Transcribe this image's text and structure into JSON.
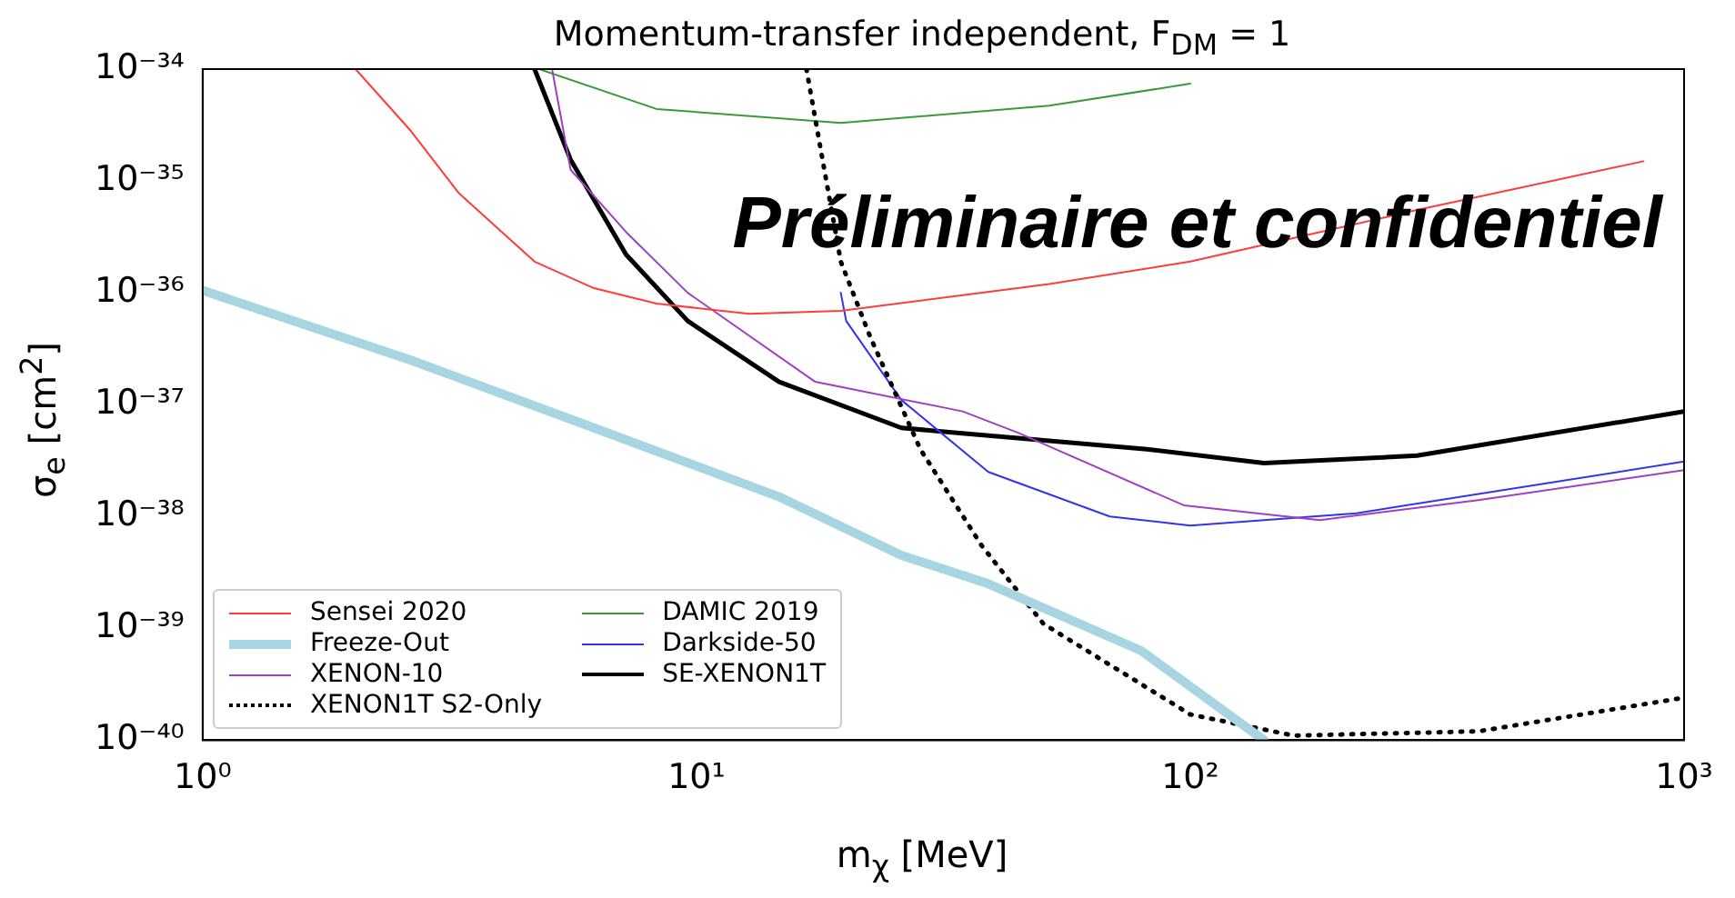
{
  "chart_data": {
    "type": "line",
    "title": "Momentum-transfer independent, F$_{DM}$ = 1",
    "xlabel": "m$_{χ}$ [MeV]",
    "ylabel": "σ$_{e}$ [cm$^{2}$]",
    "log": "xy",
    "marker": "none",
    "legend": "bottom left",
    "xlim": [
      1,
      1000
    ],
    "xticks": [
      {
        "value": 1,
        "label": "10⁰"
      },
      {
        "value": 10,
        "label": "10¹"
      },
      {
        "value": 100,
        "label": "10²"
      },
      {
        "value": 1000,
        "label": "10³"
      }
    ],
    "ylim": [
      1e-40,
      1e-34
    ],
    "yticks": [
      {
        "value": 1e-40,
        "label": "10⁻⁴⁰"
      },
      {
        "value": 1e-39,
        "label": "10⁻³⁹"
      },
      {
        "value": 1e-38,
        "label": "10⁻³⁸"
      },
      {
        "value": 1e-37,
        "label": "10⁻³⁷"
      },
      {
        "value": 1e-36,
        "label": "10⁻³⁶"
      },
      {
        "value": 1e-35,
        "label": "10⁻³⁵"
      },
      {
        "value": 1e-34,
        "label": "10⁻³⁴"
      }
    ],
    "annotations": [
      "Préliminaire et confidentiel"
    ],
    "series": [
      {
        "name": "Sensei 2020",
        "color": "#ff3b3b",
        "line_style": "solid",
        "x": [
          2.04,
          2.64,
          3.3,
          4.7,
          6.2,
          8.3,
          12.8,
          19.6,
          51.8,
          100,
          288,
          828
        ],
        "values": [
          1e-34,
          2.8e-35,
          7.8e-36,
          1.9e-36,
          1.1e-36,
          8e-37,
          6.5e-37,
          6.9e-37,
          1.2e-36,
          1.9e-36,
          5.5e-36,
          1.5e-35
        ]
      },
      {
        "name": "Freeze-Out",
        "color": "#a8d5e2",
        "line_style": "solid",
        "x": [
          1,
          2.64,
          6.2,
          14.7,
          26,
          39,
          79.6,
          141
        ],
        "values": [
          1.05e-36,
          2.5e-37,
          6.2e-38,
          1.5e-38,
          4.5e-39,
          2.5e-39,
          6.3e-40,
          1e-40
        ]
      },
      {
        "name": "XENON-10",
        "color": "#a040c0",
        "line_style": "solid",
        "x": [
          5.1,
          5.56,
          7.2,
          9.6,
          17.4,
          34.6,
          44.8,
          97,
          183,
          383,
          1000
        ],
        "values": [
          1e-34,
          1.26e-35,
          3.5e-36,
          1e-36,
          1.6e-37,
          8.7e-38,
          5.6e-38,
          1.26e-38,
          9.3e-39,
          1.4e-38,
          2.6e-38
        ]
      },
      {
        "name": "XENON1T S2-Only",
        "color": "#000000",
        "line_style": "dotted",
        "x": [
          16.7,
          18,
          19.6,
          22.5,
          28.4,
          37.8,
          50.4,
          100,
          162,
          383,
          1000
        ],
        "values": [
          1e-34,
          1.55e-35,
          1.9e-36,
          4e-37,
          4e-38,
          5.5e-39,
          1.1e-39,
          1.7e-40,
          1.1e-40,
          1.2e-40,
          2.4e-40
        ]
      },
      {
        "name": "DAMIC 2019",
        "color": "#3a9a3a",
        "line_style": "solid",
        "x": [
          4.8,
          8.3,
          19.6,
          51.8,
          100
        ],
        "values": [
          1e-34,
          4.4e-35,
          3.3e-35,
          4.7e-35,
          7.4e-35
        ]
      },
      {
        "name": "Darkside-50",
        "color": "#3333ee",
        "line_style": "solid",
        "x": [
          19.6,
          20.1,
          26,
          39,
          68.7,
          100,
          217,
          1000
        ],
        "values": [
          1e-36,
          5.6e-37,
          1.1e-37,
          2.5e-38,
          1e-38,
          8.3e-39,
          1.07e-38,
          3.1e-38
        ]
      },
      {
        "name": "SE-XENON1T",
        "color": "#000000",
        "line_style": "solid",
        "x": [
          4.7,
          5.56,
          7.2,
          9.6,
          14.7,
          26,
          33.7,
          81.7,
          141,
          288,
          1000
        ],
        "values": [
          1e-34,
          1.55e-35,
          2.2e-36,
          5.6e-37,
          1.6e-37,
          6.2e-38,
          5.6e-38,
          4e-38,
          3e-38,
          3.5e-38,
          8.7e-38
        ]
      }
    ]
  }
}
